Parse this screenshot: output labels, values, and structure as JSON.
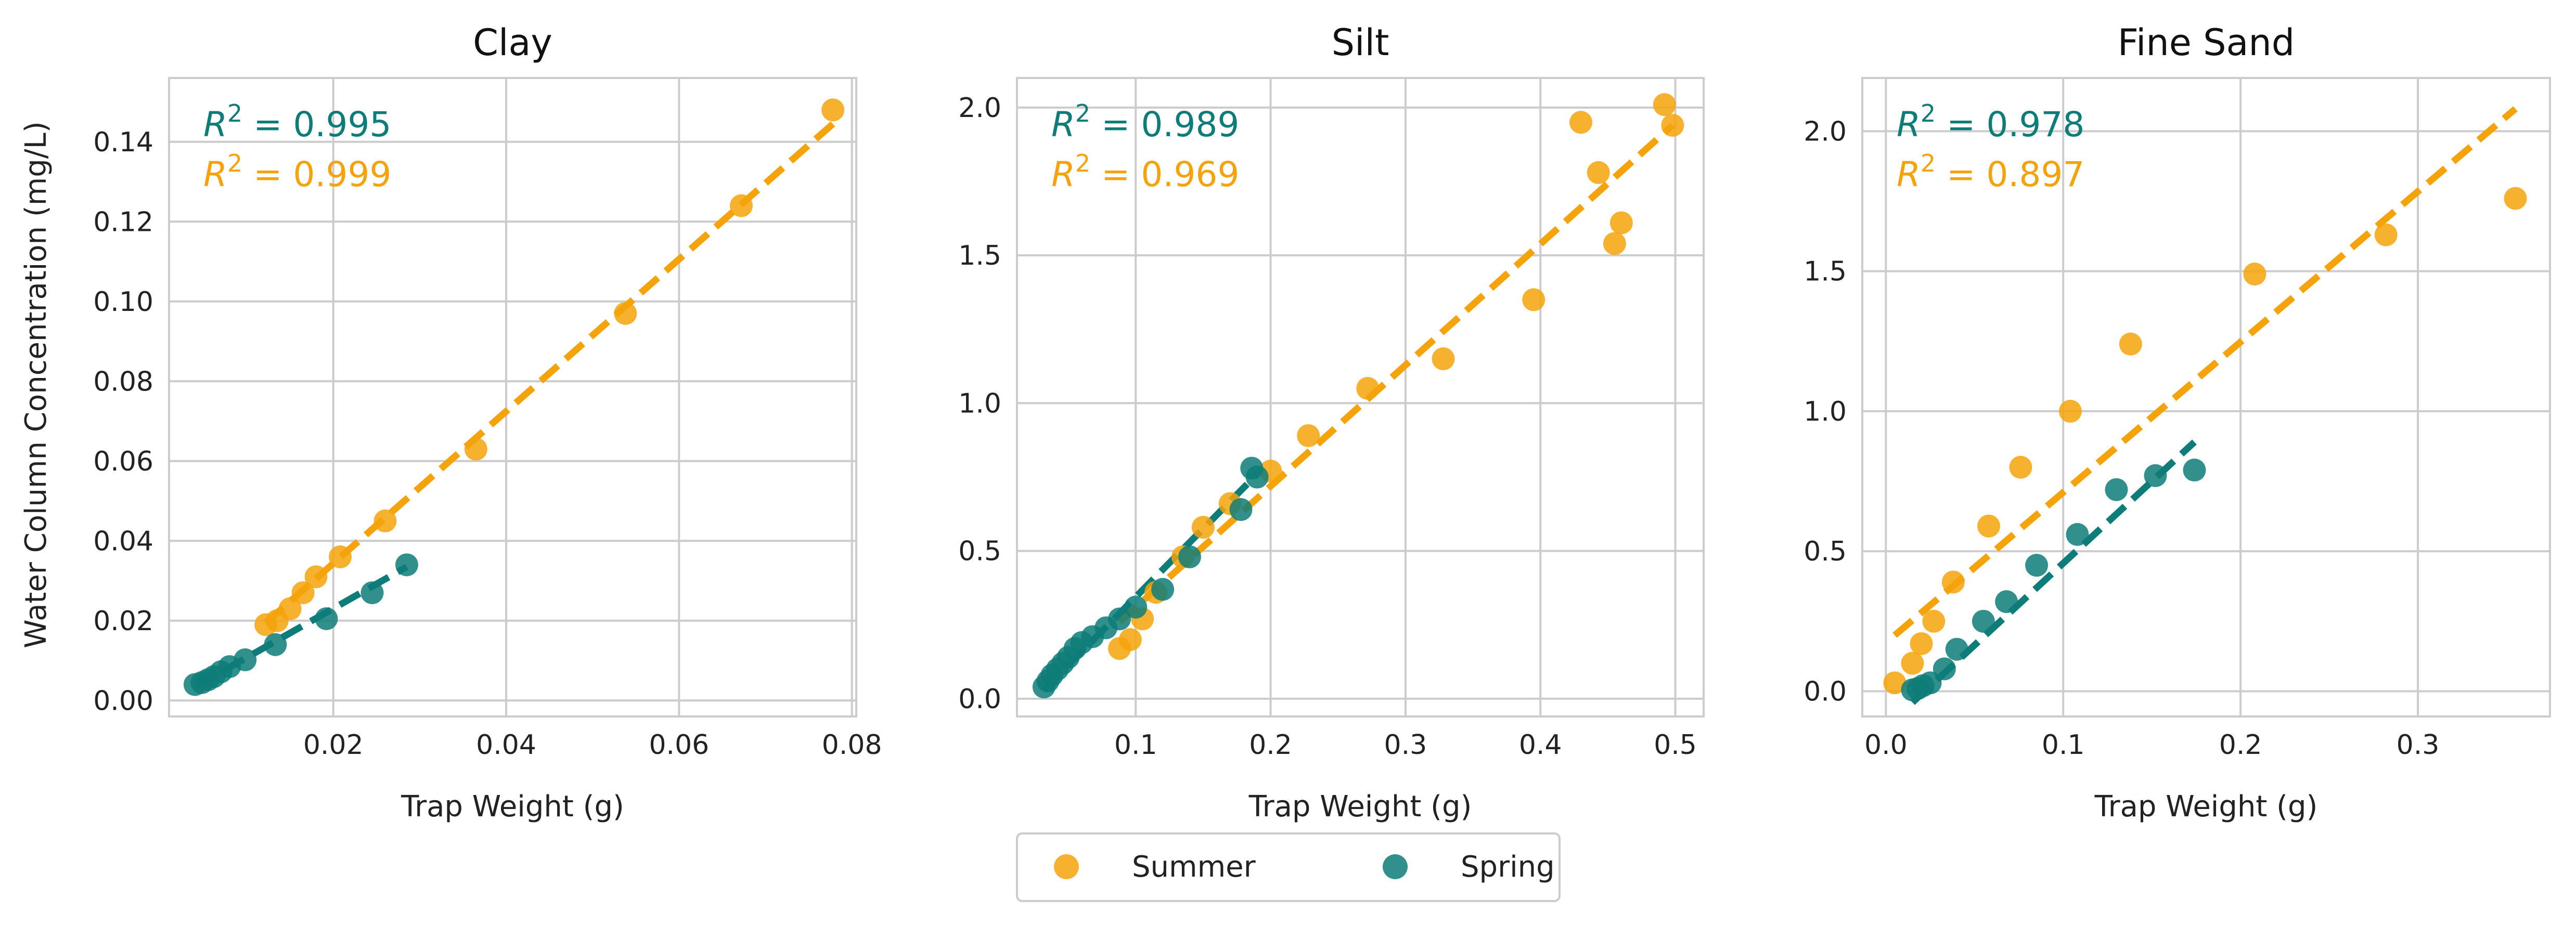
{
  "colors": {
    "summer": "#F5A30B",
    "spring": "#0E7C78",
    "grid": "#CCCCCC",
    "frame": "#CCCCCC"
  },
  "legend": {
    "placement": "bottom-center",
    "items": [
      {
        "label": "Summer",
        "color": "#F5A30B"
      },
      {
        "label": "Spring",
        "color": "#0E7C78"
      }
    ]
  },
  "shared": {
    "ylabel": "Water Column Concentration (mg/L)"
  },
  "chart_data": [
    {
      "type": "scatter",
      "title": "Clay",
      "xlabel": "Trap Weight (g)",
      "ylabel": "Water Column Concentration (mg/L)",
      "xlim": [
        0.001,
        0.0805
      ],
      "ylim": [
        -0.004,
        0.156
      ],
      "xticks": [
        0.02,
        0.04,
        0.06,
        0.08
      ],
      "xtick_labels": [
        "0.02",
        "0.04",
        "0.06",
        "0.08"
      ],
      "yticks": [
        0.0,
        0.02,
        0.04,
        0.06,
        0.08,
        0.1,
        0.12,
        0.14
      ],
      "ytick_labels": [
        "0.00",
        "0.02",
        "0.04",
        "0.06",
        "0.08",
        "0.10",
        "0.12",
        "0.14"
      ],
      "grid": true,
      "annotations": [
        {
          "prefix": "R",
          "sup": "2",
          "text": " = 0.995",
          "series": "Spring"
        },
        {
          "prefix": "R",
          "sup": "2",
          "text": " = 0.999",
          "series": "Summer"
        }
      ],
      "series": [
        {
          "name": "Summer",
          "color": "#F5A30B",
          "points": [
            [
              0.0122,
              0.019
            ],
            [
              0.0135,
              0.02
            ],
            [
              0.015,
              0.023
            ],
            [
              0.0165,
              0.027
            ],
            [
              0.018,
              0.031
            ],
            [
              0.0208,
              0.036
            ],
            [
              0.026,
              0.045
            ],
            [
              0.0365,
              0.063
            ],
            [
              0.0538,
              0.097
            ],
            [
              0.0672,
              0.124
            ],
            [
              0.0778,
              0.148
            ]
          ],
          "fit": [
            [
              0.0122,
              0.0195
            ],
            [
              0.0778,
              0.1445
            ]
          ]
        },
        {
          "name": "Spring",
          "color": "#0E7C78",
          "points": [
            [
              0.004,
              0.004
            ],
            [
              0.0048,
              0.0045
            ],
            [
              0.0055,
              0.0052
            ],
            [
              0.0062,
              0.006
            ],
            [
              0.007,
              0.0072
            ],
            [
              0.008,
              0.0085
            ],
            [
              0.0098,
              0.0102
            ],
            [
              0.0133,
              0.014
            ],
            [
              0.0192,
              0.0205
            ],
            [
              0.0245,
              0.027
            ],
            [
              0.0285,
              0.034
            ]
          ],
          "fit": [
            [
              0.004,
              0.0034
            ],
            [
              0.0285,
              0.0335
            ]
          ]
        }
      ]
    },
    {
      "type": "scatter",
      "title": "Silt",
      "xlabel": "Trap Weight (g)",
      "ylabel": "",
      "xlim": [
        0.012,
        0.521
      ],
      "ylim": [
        -0.06,
        2.1
      ],
      "xticks": [
        0.1,
        0.2,
        0.3,
        0.4,
        0.5
      ],
      "xtick_labels": [
        "0.1",
        "0.2",
        "0.3",
        "0.4",
        "0.5"
      ],
      "yticks": [
        0.0,
        0.5,
        1.0,
        1.5,
        2.0
      ],
      "ytick_labels": [
        "0.0",
        "0.5",
        "1.0",
        "1.5",
        "2.0"
      ],
      "grid": true,
      "annotations": [
        {
          "prefix": "R",
          "sup": "2",
          "text": " = 0.989",
          "series": "Spring"
        },
        {
          "prefix": "R",
          "sup": "2",
          "text": " = 0.969",
          "series": "Summer"
        }
      ],
      "series": [
        {
          "name": "Summer",
          "color": "#F5A30B",
          "points": [
            [
              0.088,
              0.17
            ],
            [
              0.096,
              0.2
            ],
            [
              0.105,
              0.27
            ],
            [
              0.115,
              0.36
            ],
            [
              0.135,
              0.48
            ],
            [
              0.15,
              0.58
            ],
            [
              0.17,
              0.66
            ],
            [
              0.2,
              0.77
            ],
            [
              0.228,
              0.89
            ],
            [
              0.272,
              1.05
            ],
            [
              0.328,
              1.15
            ],
            [
              0.395,
              1.35
            ],
            [
              0.43,
              1.95
            ],
            [
              0.443,
              1.78
            ],
            [
              0.455,
              1.54
            ],
            [
              0.46,
              1.61
            ],
            [
              0.492,
              2.01
            ],
            [
              0.498,
              1.94
            ]
          ],
          "fit": [
            [
              0.088,
              0.26
            ],
            [
              0.498,
              1.94
            ]
          ]
        },
        {
          "name": "Spring",
          "color": "#0E7C78",
          "points": [
            [
              0.032,
              0.04
            ],
            [
              0.035,
              0.06
            ],
            [
              0.038,
              0.08
            ],
            [
              0.042,
              0.1
            ],
            [
              0.046,
              0.12
            ],
            [
              0.05,
              0.14
            ],
            [
              0.055,
              0.17
            ],
            [
              0.06,
              0.19
            ],
            [
              0.068,
              0.21
            ],
            [
              0.078,
              0.24
            ],
            [
              0.088,
              0.27
            ],
            [
              0.1,
              0.31
            ],
            [
              0.12,
              0.37
            ],
            [
              0.14,
              0.48
            ],
            [
              0.178,
              0.64
            ],
            [
              0.186,
              0.78
            ],
            [
              0.19,
              0.75
            ]
          ],
          "fit": [
            [
              0.032,
              0.03
            ],
            [
              0.19,
              0.76
            ]
          ]
        }
      ]
    },
    {
      "type": "scatter",
      "title": "Fine Sand",
      "xlabel": "Trap Weight (g)",
      "ylabel": "",
      "xlim": [
        -0.0133,
        0.3745
      ],
      "ylim": [
        -0.09,
        2.19
      ],
      "xticks": [
        0.0,
        0.1,
        0.2,
        0.3
      ],
      "xtick_labels": [
        "0.0",
        "0.1",
        "0.2",
        "0.3"
      ],
      "yticks": [
        0.0,
        0.5,
        1.0,
        1.5,
        2.0
      ],
      "ytick_labels": [
        "0.0",
        "0.5",
        "1.0",
        "1.5",
        "2.0"
      ],
      "grid": true,
      "annotations": [
        {
          "prefix": "R",
          "sup": "2",
          "text": " = 0.978",
          "series": "Spring"
        },
        {
          "prefix": "R",
          "sup": "2",
          "text": " = 0.897",
          "series": "Summer"
        }
      ],
      "series": [
        {
          "name": "Summer",
          "color": "#F5A30B",
          "points": [
            [
              0.005,
              0.03
            ],
            [
              0.015,
              0.1
            ],
            [
              0.02,
              0.17
            ],
            [
              0.027,
              0.25
            ],
            [
              0.038,
              0.39
            ],
            [
              0.058,
              0.59
            ],
            [
              0.076,
              0.8
            ],
            [
              0.104,
              1.0
            ],
            [
              0.138,
              1.24
            ],
            [
              0.208,
              1.49
            ],
            [
              0.282,
              1.63
            ],
            [
              0.355,
              1.76
            ]
          ],
          "fit": [
            [
              0.005,
              0.2
            ],
            [
              0.355,
              2.08
            ]
          ]
        },
        {
          "name": "Spring",
          "color": "#0E7C78",
          "points": [
            [
              0.015,
              0.005
            ],
            [
              0.018,
              0.01
            ],
            [
              0.021,
              0.02
            ],
            [
              0.025,
              0.03
            ],
            [
              0.033,
              0.08
            ],
            [
              0.04,
              0.15
            ],
            [
              0.055,
              0.25
            ],
            [
              0.068,
              0.32
            ],
            [
              0.085,
              0.45
            ],
            [
              0.108,
              0.56
            ],
            [
              0.13,
              0.72
            ],
            [
              0.152,
              0.77
            ],
            [
              0.174,
              0.79
            ]
          ],
          "fit": [
            [
              0.015,
              -0.04
            ],
            [
              0.174,
              0.89
            ]
          ]
        }
      ]
    }
  ]
}
